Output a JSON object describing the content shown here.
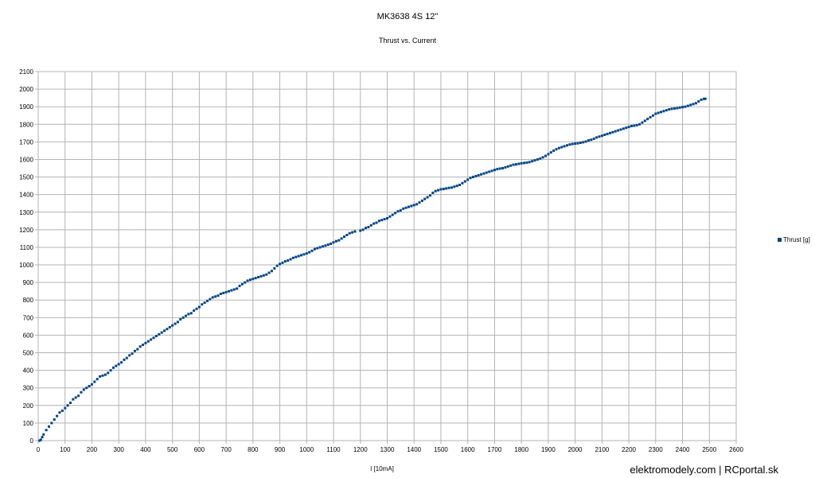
{
  "chart_data": {
    "type": "scatter",
    "title": "MK3638 4S 12\"",
    "subtitle": "Thrust vs. Current",
    "xlabel": "I [10mA]",
    "ylabel": "",
    "xlim": [
      0,
      2600
    ],
    "ylim": [
      0,
      2100
    ],
    "x_ticks": [
      0,
      100,
      200,
      300,
      400,
      500,
      600,
      700,
      800,
      900,
      1000,
      1100,
      1200,
      1300,
      1400,
      1500,
      1600,
      1700,
      1800,
      1900,
      2000,
      2100,
      2200,
      2300,
      2400,
      2500,
      2600
    ],
    "y_ticks": [
      0,
      100,
      200,
      300,
      400,
      500,
      600,
      700,
      800,
      900,
      1000,
      1100,
      1200,
      1300,
      1400,
      1500,
      1600,
      1700,
      1800,
      1900,
      2000,
      2100
    ],
    "grid": true,
    "legend_position": "right",
    "series": [
      {
        "name": "Thrust [g]",
        "color": "#004586",
        "points": [
          [
            5,
            0
          ],
          [
            10,
            5
          ],
          [
            15,
            20
          ],
          [
            20,
            35
          ],
          [
            30,
            60
          ],
          [
            40,
            80
          ],
          [
            50,
            100
          ],
          [
            60,
            120
          ],
          [
            70,
            140
          ],
          [
            80,
            160
          ],
          [
            90,
            170
          ],
          [
            100,
            185
          ],
          [
            110,
            200
          ],
          [
            120,
            215
          ],
          [
            130,
            235
          ],
          [
            140,
            245
          ],
          [
            150,
            255
          ],
          [
            160,
            275
          ],
          [
            170,
            290
          ],
          [
            180,
            300
          ],
          [
            190,
            310
          ],
          [
            200,
            320
          ],
          [
            210,
            335
          ],
          [
            220,
            350
          ],
          [
            230,
            365
          ],
          [
            240,
            370
          ],
          [
            250,
            375
          ],
          [
            260,
            385
          ],
          [
            270,
            400
          ],
          [
            280,
            415
          ],
          [
            290,
            425
          ],
          [
            300,
            435
          ],
          [
            310,
            445
          ],
          [
            320,
            460
          ],
          [
            330,
            470
          ],
          [
            340,
            485
          ],
          [
            350,
            495
          ],
          [
            360,
            510
          ],
          [
            370,
            520
          ],
          [
            380,
            535
          ],
          [
            390,
            545
          ],
          [
            400,
            555
          ],
          [
            410,
            565
          ],
          [
            420,
            575
          ],
          [
            430,
            585
          ],
          [
            440,
            595
          ],
          [
            450,
            605
          ],
          [
            460,
            615
          ],
          [
            470,
            625
          ],
          [
            480,
            635
          ],
          [
            490,
            645
          ],
          [
            500,
            655
          ],
          [
            510,
            665
          ],
          [
            520,
            675
          ],
          [
            530,
            690
          ],
          [
            540,
            700
          ],
          [
            550,
            710
          ],
          [
            560,
            720
          ],
          [
            570,
            725
          ],
          [
            580,
            740
          ],
          [
            590,
            750
          ],
          [
            600,
            760
          ],
          [
            610,
            775
          ],
          [
            620,
            785
          ],
          [
            630,
            795
          ],
          [
            640,
            805
          ],
          [
            650,
            815
          ],
          [
            660,
            820
          ],
          [
            670,
            825
          ],
          [
            680,
            835
          ],
          [
            690,
            840
          ],
          [
            700,
            845
          ],
          [
            710,
            850
          ],
          [
            720,
            855
          ],
          [
            730,
            860
          ],
          [
            740,
            865
          ],
          [
            750,
            880
          ],
          [
            760,
            890
          ],
          [
            770,
            900
          ],
          [
            780,
            910
          ],
          [
            790,
            915
          ],
          [
            800,
            920
          ],
          [
            810,
            925
          ],
          [
            820,
            930
          ],
          [
            830,
            935
          ],
          [
            840,
            940
          ],
          [
            850,
            945
          ],
          [
            860,
            955
          ],
          [
            870,
            965
          ],
          [
            880,
            980
          ],
          [
            890,
            995
          ],
          [
            900,
            1005
          ],
          [
            910,
            1012
          ],
          [
            920,
            1020
          ],
          [
            930,
            1025
          ],
          [
            940,
            1032
          ],
          [
            950,
            1040
          ],
          [
            960,
            1045
          ],
          [
            970,
            1050
          ],
          [
            980,
            1055
          ],
          [
            990,
            1060
          ],
          [
            1000,
            1065
          ],
          [
            1010,
            1072
          ],
          [
            1020,
            1080
          ],
          [
            1030,
            1090
          ],
          [
            1040,
            1095
          ],
          [
            1050,
            1100
          ],
          [
            1060,
            1105
          ],
          [
            1070,
            1110
          ],
          [
            1080,
            1115
          ],
          [
            1090,
            1120
          ],
          [
            1100,
            1128
          ],
          [
            1110,
            1135
          ],
          [
            1120,
            1140
          ],
          [
            1130,
            1150
          ],
          [
            1140,
            1160
          ],
          [
            1150,
            1170
          ],
          [
            1160,
            1180
          ],
          [
            1170,
            1185
          ],
          [
            1180,
            1190
          ],
          [
            1200,
            1195
          ],
          [
            1210,
            1200
          ],
          [
            1220,
            1210
          ],
          [
            1230,
            1215
          ],
          [
            1240,
            1225
          ],
          [
            1250,
            1235
          ],
          [
            1260,
            1240
          ],
          [
            1270,
            1250
          ],
          [
            1280,
            1255
          ],
          [
            1290,
            1260
          ],
          [
            1300,
            1265
          ],
          [
            1310,
            1275
          ],
          [
            1320,
            1285
          ],
          [
            1330,
            1295
          ],
          [
            1340,
            1305
          ],
          [
            1350,
            1310
          ],
          [
            1360,
            1320
          ],
          [
            1370,
            1325
          ],
          [
            1380,
            1330
          ],
          [
            1390,
            1335
          ],
          [
            1400,
            1340
          ],
          [
            1410,
            1345
          ],
          [
            1420,
            1355
          ],
          [
            1430,
            1365
          ],
          [
            1440,
            1375
          ],
          [
            1450,
            1385
          ],
          [
            1460,
            1395
          ],
          [
            1470,
            1410
          ],
          [
            1480,
            1420
          ],
          [
            1490,
            1425
          ],
          [
            1500,
            1430
          ],
          [
            1510,
            1432
          ],
          [
            1520,
            1435
          ],
          [
            1530,
            1438
          ],
          [
            1540,
            1440
          ],
          [
            1550,
            1445
          ],
          [
            1560,
            1450
          ],
          [
            1570,
            1455
          ],
          [
            1580,
            1465
          ],
          [
            1590,
            1475
          ],
          [
            1600,
            1485
          ],
          [
            1610,
            1495
          ],
          [
            1620,
            1500
          ],
          [
            1630,
            1505
          ],
          [
            1640,
            1510
          ],
          [
            1650,
            1515
          ],
          [
            1660,
            1520
          ],
          [
            1670,
            1525
          ],
          [
            1680,
            1530
          ],
          [
            1690,
            1535
          ],
          [
            1700,
            1540
          ],
          [
            1710,
            1545
          ],
          [
            1720,
            1548
          ],
          [
            1730,
            1550
          ],
          [
            1740,
            1555
          ],
          [
            1750,
            1560
          ],
          [
            1760,
            1565
          ],
          [
            1770,
            1570
          ],
          [
            1780,
            1572
          ],
          [
            1790,
            1575
          ],
          [
            1800,
            1578
          ],
          [
            1810,
            1580
          ],
          [
            1820,
            1582
          ],
          [
            1830,
            1585
          ],
          [
            1840,
            1590
          ],
          [
            1850,
            1595
          ],
          [
            1860,
            1600
          ],
          [
            1870,
            1605
          ],
          [
            1880,
            1612
          ],
          [
            1890,
            1620
          ],
          [
            1900,
            1630
          ],
          [
            1910,
            1640
          ],
          [
            1920,
            1650
          ],
          [
            1930,
            1658
          ],
          [
            1940,
            1665
          ],
          [
            1950,
            1670
          ],
          [
            1960,
            1675
          ],
          [
            1970,
            1680
          ],
          [
            1980,
            1685
          ],
          [
            1990,
            1688
          ],
          [
            2000,
            1690
          ],
          [
            2010,
            1692
          ],
          [
            2020,
            1695
          ],
          [
            2030,
            1698
          ],
          [
            2040,
            1702
          ],
          [
            2050,
            1708
          ],
          [
            2060,
            1712
          ],
          [
            2070,
            1718
          ],
          [
            2080,
            1725
          ],
          [
            2090,
            1730
          ],
          [
            2100,
            1735
          ],
          [
            2110,
            1740
          ],
          [
            2120,
            1745
          ],
          [
            2130,
            1750
          ],
          [
            2140,
            1755
          ],
          [
            2150,
            1760
          ],
          [
            2160,
            1765
          ],
          [
            2170,
            1770
          ],
          [
            2180,
            1775
          ],
          [
            2190,
            1780
          ],
          [
            2200,
            1785
          ],
          [
            2210,
            1790
          ],
          [
            2220,
            1792
          ],
          [
            2230,
            1795
          ],
          [
            2240,
            1800
          ],
          [
            2250,
            1810
          ],
          [
            2260,
            1820
          ],
          [
            2270,
            1830
          ],
          [
            2280,
            1840
          ],
          [
            2290,
            1850
          ],
          [
            2300,
            1860
          ],
          [
            2310,
            1865
          ],
          [
            2320,
            1870
          ],
          [
            2330,
            1875
          ],
          [
            2340,
            1880
          ],
          [
            2350,
            1885
          ],
          [
            2360,
            1888
          ],
          [
            2370,
            1890
          ],
          [
            2380,
            1892
          ],
          [
            2390,
            1895
          ],
          [
            2400,
            1898
          ],
          [
            2410,
            1900
          ],
          [
            2420,
            1905
          ],
          [
            2430,
            1910
          ],
          [
            2440,
            1915
          ],
          [
            2450,
            1920
          ],
          [
            2460,
            1930
          ],
          [
            2470,
            1940
          ],
          [
            2480,
            1945
          ],
          [
            2485,
            1945
          ]
        ]
      }
    ]
  },
  "watermark": "elektromodely.com | RCportal.sk"
}
